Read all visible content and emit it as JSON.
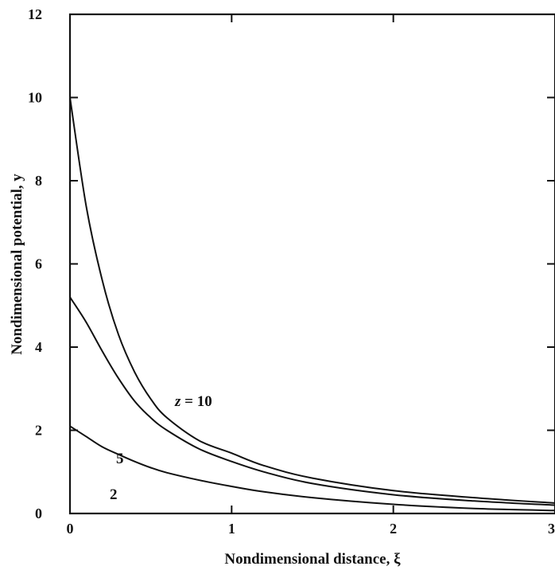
{
  "chart_data": {
    "type": "line",
    "title": "",
    "xlabel": "Nondimensional distance, ξ",
    "ylabel": "Nondimensional potential, y",
    "xlim": [
      0,
      3
    ],
    "ylim": [
      0,
      12
    ],
    "xticks": [
      "0",
      "1",
      "2",
      "3"
    ],
    "yticks": [
      "0",
      "2",
      "4",
      "6",
      "8",
      "10",
      "12"
    ],
    "grid": false,
    "legend": "none",
    "series": [
      {
        "label": "z = 10",
        "x": [
          0,
          0.1,
          0.2,
          0.3,
          0.4,
          0.5,
          0.6,
          0.8,
          1.0,
          1.2,
          1.5,
          2.0,
          2.5,
          3.0
        ],
        "y": [
          10.0,
          7.4,
          5.6,
          4.3,
          3.4,
          2.75,
          2.3,
          1.75,
          1.45,
          1.15,
          0.85,
          0.55,
          0.38,
          0.25
        ]
      },
      {
        "label": "5",
        "x": [
          0,
          0.1,
          0.2,
          0.3,
          0.4,
          0.5,
          0.6,
          0.8,
          1.0,
          1.2,
          1.5,
          2.0,
          2.5,
          3.0
        ],
        "y": [
          5.2,
          4.6,
          3.9,
          3.25,
          2.7,
          2.3,
          2.0,
          1.55,
          1.25,
          1.0,
          0.72,
          0.45,
          0.3,
          0.2
        ]
      },
      {
        "label": "2",
        "x": [
          0,
          0.1,
          0.2,
          0.3,
          0.4,
          0.5,
          0.6,
          0.8,
          1.0,
          1.2,
          1.5,
          2.0,
          2.5,
          3.0
        ],
        "y": [
          2.1,
          1.85,
          1.6,
          1.42,
          1.25,
          1.1,
          0.98,
          0.8,
          0.65,
          0.52,
          0.38,
          0.22,
          0.12,
          0.07
        ]
      }
    ]
  }
}
